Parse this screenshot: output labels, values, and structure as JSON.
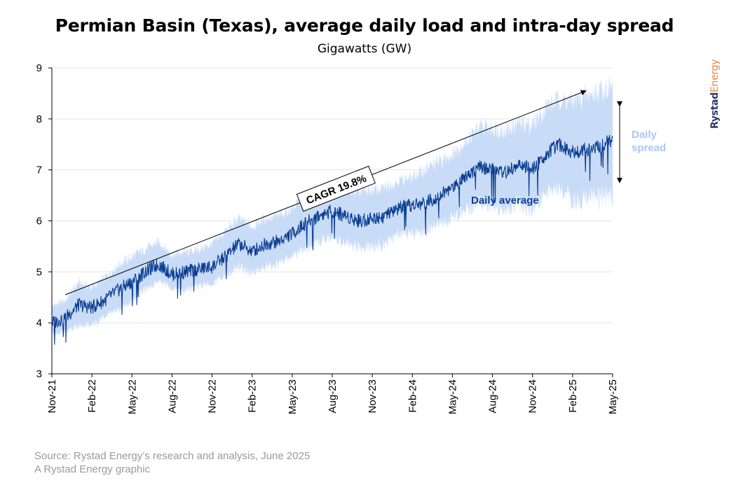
{
  "header": {
    "title": "Permian Basin (Texas), average daily load and intra-day spread",
    "subtitle": "Gigawatts (GW)"
  },
  "brand": {
    "part1": "Rystad",
    "part2": "Energy"
  },
  "footer": {
    "source": "Source: Rystad Energy’s research and analysis, June 2025",
    "credit": "A Rystad Energy graphic"
  },
  "colors": {
    "average": "#0b3d91",
    "spread": "#c9dcf7",
    "spread_label": "#a9c8f0",
    "grid": "#e3e3e3",
    "axis": "#000000"
  },
  "chart_data": {
    "type": "area",
    "title": "Permian Basin (Texas), average daily load and intra-day spread",
    "subtitle": "Gigawatts (GW)",
    "x_tick_labels": [
      "Nov-21",
      "Feb-22",
      "May-22",
      "Aug-22",
      "Nov-22",
      "Feb-23",
      "May-23",
      "Aug-23",
      "Nov-23",
      "Feb-24",
      "May-24",
      "Aug-24",
      "Nov-24",
      "Feb-25",
      "May-25"
    ],
    "xlim": [
      "Nov-21",
      "May-25"
    ],
    "ylim": [
      3,
      9
    ],
    "y_ticks": [
      3,
      4,
      5,
      6,
      7,
      8,
      9
    ],
    "grid": "horizontal",
    "series": [
      {
        "name": "Daily average",
        "kind": "line",
        "x": [
          "Nov-21",
          "Dec-21",
          "Jan-22",
          "Feb-22",
          "Mar-22",
          "Apr-22",
          "May-22",
          "Jun-22",
          "Jul-22",
          "Aug-22",
          "Sep-22",
          "Oct-22",
          "Nov-22",
          "Dec-22",
          "Jan-23",
          "Feb-23",
          "Mar-23",
          "Apr-23",
          "May-23",
          "Jun-23",
          "Jul-23",
          "Aug-23",
          "Sep-23",
          "Oct-23",
          "Nov-23",
          "Dec-23",
          "Jan-24",
          "Feb-24",
          "Mar-24",
          "Apr-24",
          "May-24",
          "Jun-24",
          "Jul-24",
          "Aug-24",
          "Sep-24",
          "Oct-24",
          "Nov-24",
          "Dec-24",
          "Jan-25",
          "Feb-25",
          "Mar-25",
          "Apr-25",
          "May-25"
        ],
        "values": [
          4.0,
          4.1,
          4.35,
          4.3,
          4.45,
          4.65,
          4.8,
          5.0,
          5.15,
          4.95,
          5.0,
          5.05,
          5.1,
          5.3,
          5.55,
          5.4,
          5.55,
          5.6,
          5.75,
          5.95,
          6.1,
          6.2,
          6.1,
          6.0,
          6.05,
          6.1,
          6.25,
          6.3,
          6.35,
          6.5,
          6.65,
          6.9,
          7.05,
          7.0,
          6.95,
          7.1,
          7.0,
          7.3,
          7.5,
          7.35,
          7.4,
          7.45,
          7.6
        ]
      },
      {
        "name": "Daily spread",
        "kind": "band",
        "x": [
          "Nov-21",
          "Dec-21",
          "Jan-22",
          "Feb-22",
          "Mar-22",
          "Apr-22",
          "May-22",
          "Jun-22",
          "Jul-22",
          "Aug-22",
          "Sep-22",
          "Oct-22",
          "Nov-22",
          "Dec-22",
          "Jan-23",
          "Feb-23",
          "Mar-23",
          "Apr-23",
          "May-23",
          "Jun-23",
          "Jul-23",
          "Aug-23",
          "Sep-23",
          "Oct-23",
          "Nov-23",
          "Dec-23",
          "Jan-24",
          "Feb-24",
          "Mar-24",
          "Apr-24",
          "May-24",
          "Jun-24",
          "Jul-24",
          "Aug-24",
          "Sep-24",
          "Oct-24",
          "Nov-24",
          "Dec-24",
          "Jan-25",
          "Feb-25",
          "Mar-25",
          "Apr-25",
          "May-25"
        ],
        "low": [
          3.8,
          3.85,
          4.0,
          4.0,
          4.15,
          4.3,
          4.45,
          4.7,
          4.85,
          4.7,
          4.7,
          4.75,
          4.8,
          4.95,
          5.15,
          5.0,
          5.15,
          5.2,
          5.35,
          5.5,
          5.65,
          5.75,
          5.6,
          5.5,
          5.55,
          5.6,
          5.8,
          5.8,
          5.85,
          6.0,
          6.1,
          6.3,
          6.4,
          6.35,
          6.3,
          6.4,
          6.3,
          6.6,
          6.7,
          6.5,
          6.5,
          6.55,
          6.6
        ],
        "high": [
          4.3,
          4.4,
          4.75,
          4.65,
          4.85,
          5.1,
          5.25,
          5.4,
          5.55,
          5.3,
          5.35,
          5.4,
          5.5,
          5.75,
          6.0,
          5.85,
          6.0,
          6.05,
          6.2,
          6.45,
          6.6,
          6.65,
          6.6,
          6.5,
          6.55,
          6.6,
          6.75,
          6.8,
          6.95,
          7.1,
          7.25,
          7.5,
          7.75,
          7.75,
          7.7,
          7.85,
          7.8,
          8.15,
          8.3,
          8.25,
          8.35,
          8.45,
          8.55
        ]
      }
    ],
    "annotations": [
      {
        "text": "CAGR 19.8%",
        "kind": "trend-arrow",
        "from": {
          "x": "Dec-21",
          "y": 4.55
        },
        "to": {
          "x": "Mar-25",
          "y": 8.55
        }
      },
      {
        "text": "Daily average",
        "kind": "series-label"
      },
      {
        "text": "Daily\nspread",
        "kind": "range-arrow",
        "y_range": [
          6.75,
          8.25
        ]
      }
    ]
  }
}
